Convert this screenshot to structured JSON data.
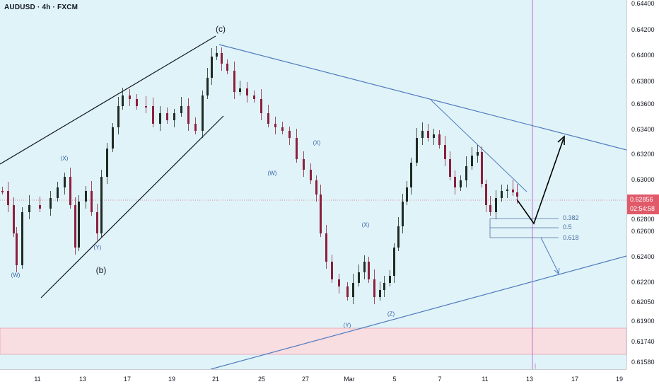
{
  "title": "AUDUSD · 4h · FXCM",
  "chart_data": {
    "type": "candlestick",
    "symbol": "AUDUSD",
    "timeframe": "4h",
    "source": "FXCM",
    "y_ticks": [
      "0.64400",
      "0.64200",
      "0.64000",
      "0.63800",
      "0.63600",
      "0.63400",
      "0.63200",
      "0.63000",
      "0.62800",
      "0.62600",
      "0.62400",
      "0.62200",
      "0.62050",
      "0.61900",
      "0.61740",
      "0.61580"
    ],
    "x_ticks": [
      "11",
      "13",
      "17",
      "19",
      "21",
      "25",
      "27",
      "Mar",
      "5",
      "7",
      "11",
      "13",
      "17",
      "19"
    ],
    "current_price": "0.62856",
    "countdown": "02:54:58",
    "current_price_value": 0.62856,
    "fib_levels": [
      {
        "label": "0.382",
        "price": 0.6269
      },
      {
        "label": "0.5",
        "price": 0.6265
      },
      {
        "label": "0.618",
        "price": 0.6258
      }
    ],
    "wave_labels": [
      "(W)",
      "(X)",
      "(Y)",
      "(b)",
      "(c)",
      "(W)",
      "(X)",
      "(Y)",
      "(X)",
      "(Z)"
    ],
    "colors": {
      "up": "#1f2a24",
      "down": "#8c1f3c",
      "trendline": "#4f7bbf",
      "projection": "#000000",
      "support_zone": "#f8dde1",
      "marker": "#c46fcf",
      "price_line": "#d06a7a"
    }
  }
}
